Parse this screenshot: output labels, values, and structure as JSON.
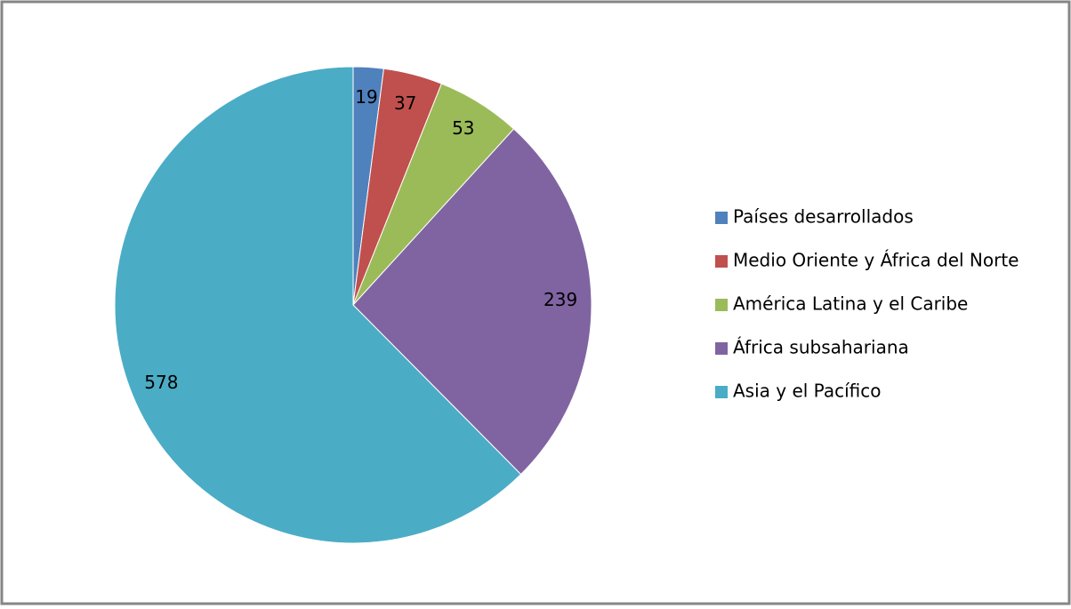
{
  "chart_data": {
    "type": "pie",
    "categories": [
      "Países desarrollados",
      "Medio Oriente y África del Norte",
      "América Latina y el Caribe",
      "África subsahariana",
      "Asia y el Pacífico"
    ],
    "values": [
      19,
      37,
      53,
      239,
      578
    ],
    "colors": [
      "#4f81bd",
      "#c0504d",
      "#9bbb59",
      "#8064a2",
      "#4bacc6"
    ],
    "legend": "right"
  }
}
